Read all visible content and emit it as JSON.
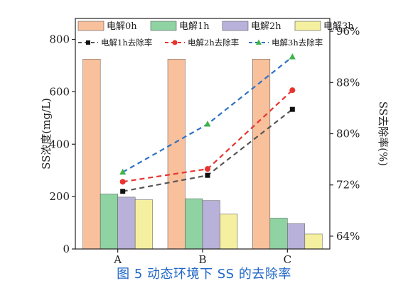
{
  "caption": "图 5   动态环境下 SS 的去除率",
  "chart_data": {
    "type": "bar",
    "categories": [
      "A",
      "B",
      "C"
    ],
    "ylabel": "SS浓度(mg/L)",
    "y2label": "SS去除率(%)",
    "ylim": [
      0,
      880
    ],
    "yticks": [
      0,
      200,
      400,
      600,
      800
    ],
    "y2lim": [
      62,
      98
    ],
    "y2ticks": [
      64,
      72,
      80,
      88,
      96
    ],
    "y2tick_labels": [
      "64%",
      "72%",
      "80%",
      "88%",
      "96%"
    ],
    "grid": false,
    "legend_position": "top",
    "bar_series": [
      {
        "name": "电解0h",
        "color": "#f9c09c",
        "values": [
          725,
          725,
          725
        ]
      },
      {
        "name": "电解1h",
        "color": "#8fd3a2",
        "values": [
          210,
          192,
          118
        ]
      },
      {
        "name": "电解2h",
        "color": "#b8b1d9",
        "values": [
          198,
          185,
          97
        ]
      },
      {
        "name": "电解3h",
        "color": "#f4f0a0",
        "values": [
          188,
          133,
          57
        ]
      }
    ],
    "line_series": [
      {
        "name": "电解1h去除率",
        "color": "#555555",
        "marker": "square",
        "values": [
          71.0,
          73.5,
          83.8
        ]
      },
      {
        "name": "电解2h去除率",
        "color": "#e8332e",
        "marker": "circle",
        "values": [
          72.5,
          74.5,
          86.8
        ]
      },
      {
        "name": "电解3h去除率",
        "color": "#2f72c4",
        "marker": "triangle",
        "values": [
          74.0,
          81.5,
          92.0
        ]
      }
    ]
  }
}
